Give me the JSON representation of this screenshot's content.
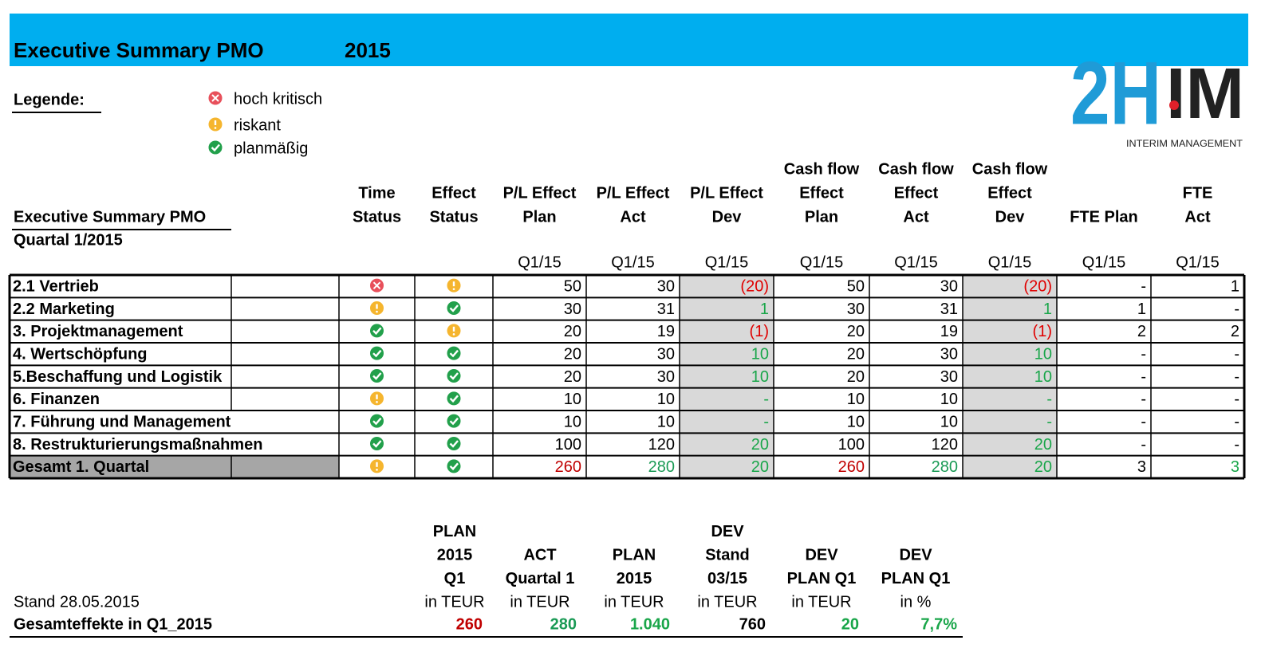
{
  "header": {
    "title": "Executive Summary PMO",
    "year": "2015"
  },
  "logo": {
    "left": "2H",
    "right": "IM",
    "sub": "INTERIM MANAGEMENT"
  },
  "legend": {
    "label": "Legende:",
    "items": [
      {
        "status": "red",
        "text": "hoch kritisch"
      },
      {
        "status": "yellow",
        "text": "riskant"
      },
      {
        "status": "green",
        "text": "planmäßig"
      }
    ]
  },
  "table": {
    "title": "Executive Summary PMO",
    "subtitle": "Quartal 1/2015",
    "columns": [
      [
        "Time",
        "Status"
      ],
      [
        "Effect",
        "Status"
      ],
      [
        "P/L Effect",
        "Plan"
      ],
      [
        "P/L Effect",
        "Act"
      ],
      [
        "P/L Effect",
        "Dev"
      ],
      [
        "Cash flow",
        "Effect",
        "Plan"
      ],
      [
        "Cash flow",
        "Effect",
        "Act"
      ],
      [
        "Cash flow",
        "Effect",
        "Dev"
      ],
      [
        "FTE Plan"
      ],
      [
        "FTE",
        "Act"
      ]
    ],
    "period": [
      "Q1/15",
      "Q1/15",
      "Q1/15",
      "Q1/15",
      "Q1/15",
      "Q1/15",
      "Q1/15",
      "Q1/15"
    ],
    "rows": [
      {
        "label": "2.1 Vertrieb",
        "time": "red",
        "effect": "yellow",
        "cells": [
          50,
          30,
          {
            "text": "(20)",
            "color": "#e00000"
          },
          50,
          30,
          {
            "text": "(20)",
            "color": "#e00000"
          },
          "-",
          1
        ]
      },
      {
        "label": "2.2 Marketing",
        "time": "yellow",
        "effect": "green",
        "cells": [
          30,
          31,
          {
            "text": 1,
            "color": "#1aa64a"
          },
          30,
          31,
          {
            "text": 1,
            "color": "#1aa64a"
          },
          1,
          "-"
        ]
      },
      {
        "label": "3. Projektmanagement",
        "time": "green",
        "effect": "yellow",
        "cells": [
          20,
          19,
          {
            "text": "(1)",
            "color": "#e00000"
          },
          20,
          19,
          {
            "text": "(1)",
            "color": "#e00000"
          },
          2,
          2
        ]
      },
      {
        "label": "4. Wertschöpfung",
        "time": "green",
        "effect": "green",
        "cells": [
          20,
          30,
          {
            "text": 10,
            "color": "#1aa64a"
          },
          20,
          30,
          {
            "text": 10,
            "color": "#1aa64a"
          },
          "-",
          "-"
        ]
      },
      {
        "label": "5.Beschaffung und Logistik",
        "time": "green",
        "effect": "green",
        "cells": [
          20,
          30,
          {
            "text": 10,
            "color": "#1aa64a"
          },
          20,
          30,
          {
            "text": 10,
            "color": "#1aa64a"
          },
          "-",
          "-"
        ]
      },
      {
        "label": "6. Finanzen",
        "time": "yellow",
        "effect": "green",
        "cells": [
          10,
          10,
          {
            "text": "-",
            "color": "#1aa64a"
          },
          10,
          10,
          {
            "text": "-",
            "color": "#1aa64a"
          },
          "-",
          "-"
        ]
      },
      {
        "label": "7. Führung und Management",
        "time": "green",
        "effect": "green",
        "cells": [
          10,
          10,
          {
            "text": "-",
            "color": "#1aa64a"
          },
          10,
          10,
          {
            "text": "-",
            "color": "#1aa64a"
          },
          "-",
          "-"
        ]
      },
      {
        "label": "8. Restrukturierungsmaßnahmen",
        "time": "green",
        "effect": "green",
        "cells": [
          100,
          120,
          {
            "text": 20,
            "color": "#1aa64a"
          },
          100,
          120,
          {
            "text": 20,
            "color": "#1aa64a"
          },
          "-",
          "-"
        ]
      },
      {
        "label": "Gesamt 1. Quartal",
        "time": "yellow",
        "effect": "green",
        "total": true,
        "cells": [
          {
            "text": 260,
            "color": "#c00000"
          },
          {
            "text": 280,
            "color": "#1a9a55"
          },
          {
            "text": 20,
            "color": "#1aa64a"
          },
          {
            "text": 260,
            "color": "#c00000"
          },
          {
            "text": 280,
            "color": "#1a9a55"
          },
          {
            "text": 20,
            "color": "#1aa64a"
          },
          3,
          {
            "text": 3,
            "color": "#1aa64a"
          }
        ]
      }
    ]
  },
  "summary": {
    "stand": "Stand 28.05.2015",
    "label": "Gesamteffekte in Q1_2015",
    "columns": [
      {
        "header": [
          "PLAN",
          "2015",
          "Q1",
          "in TEUR"
        ],
        "value": {
          "text": 260,
          "color": "#c00000"
        }
      },
      {
        "header": [
          "ACT",
          "Quartal 1",
          "in TEUR"
        ],
        "value": {
          "text": 280,
          "color": "#1a9a55"
        }
      },
      {
        "header": [
          "PLAN",
          "2015",
          "in TEUR"
        ],
        "value": {
          "text": "1.040",
          "color": "#1aa64a"
        }
      },
      {
        "header": [
          "DEV",
          "Stand",
          "03/15",
          "in TEUR"
        ],
        "value": {
          "text": 760,
          "color": "#000000"
        }
      },
      {
        "header": [
          "DEV",
          "PLAN Q1",
          "in TEUR"
        ],
        "value": {
          "text": 20,
          "color": "#1aa64a"
        }
      },
      {
        "header": [
          "DEV",
          "PLAN Q1",
          "in %"
        ],
        "value": {
          "text": "7,7%",
          "color": "#1aa64a"
        }
      }
    ]
  }
}
